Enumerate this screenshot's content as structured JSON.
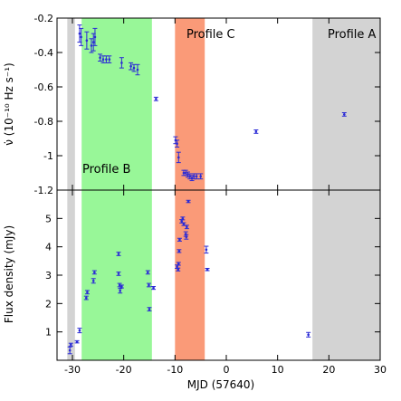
{
  "chart_data": [
    {
      "type": "scatter",
      "panel": "top",
      "xlabel": "MJD (57640)",
      "ylabel": "ν̇ (10⁻¹⁰ Hz s⁻¹)",
      "xlim": [
        -33,
        30
      ],
      "ylim": [
        -1.2,
        -0.2
      ],
      "yticks": [
        -0.2,
        -0.4,
        -0.6,
        -0.8,
        -1,
        -1.2
      ],
      "grid": false,
      "marker_color": "#2b2bd6",
      "series": [
        {
          "points": [
            {
              "x": -28.6,
              "y": -0.29,
              "err": 0.05
            },
            {
              "x": -28.3,
              "y": -0.31,
              "err": 0.05
            },
            {
              "x": -27.2,
              "y": -0.33,
              "err": 0.05
            },
            {
              "x": -26.3,
              "y": -0.36,
              "err": 0.04
            },
            {
              "x": -25.9,
              "y": -0.34,
              "err": 0.05
            },
            {
              "x": -25.6,
              "y": -0.31,
              "err": 0.05
            },
            {
              "x": -24.6,
              "y": -0.43,
              "err": 0.02
            },
            {
              "x": -24.0,
              "y": -0.44,
              "err": 0.02
            },
            {
              "x": -23.4,
              "y": -0.44,
              "err": 0.02
            },
            {
              "x": -22.8,
              "y": -0.44,
              "err": 0.02
            },
            {
              "x": -20.4,
              "y": -0.46,
              "err": 0.03
            },
            {
              "x": -18.6,
              "y": -0.48,
              "err": 0.02
            },
            {
              "x": -18.0,
              "y": -0.49,
              "err": 0.02
            },
            {
              "x": -17.3,
              "y": -0.5,
              "err": 0.03
            },
            {
              "x": -13.7,
              "y": -0.67,
              "err": 0.01
            },
            {
              "x": -9.9,
              "y": -0.91,
              "err": 0.02
            },
            {
              "x": -9.6,
              "y": -0.93,
              "err": 0.02
            },
            {
              "x": -9.3,
              "y": -1.01,
              "err": 0.03
            },
            {
              "x": -8.3,
              "y": -1.1,
              "err": 0.015
            },
            {
              "x": -7.9,
              "y": -1.1,
              "err": 0.015
            },
            {
              "x": -7.5,
              "y": -1.11,
              "err": 0.015
            },
            {
              "x": -7.1,
              "y": -1.12,
              "err": 0.015
            },
            {
              "x": -6.7,
              "y": -1.13,
              "err": 0.015
            },
            {
              "x": -6.3,
              "y": -1.12,
              "err": 0.015
            },
            {
              "x": -5.8,
              "y": -1.12,
              "err": 0.015
            },
            {
              "x": -5.0,
              "y": -1.12,
              "err": 0.015
            },
            {
              "x": 5.8,
              "y": -0.86,
              "err": 0.01
            },
            {
              "x": 23.0,
              "y": -0.76,
              "err": 0.01
            }
          ]
        }
      ]
    },
    {
      "type": "scatter",
      "panel": "bottom",
      "xlabel": "MJD (57640)",
      "ylabel": "Flux density (mJy)",
      "xlim": [
        -33,
        30
      ],
      "ylim": [
        0,
        6
      ],
      "xticks": [
        -30,
        -20,
        -10,
        0,
        10,
        20,
        30
      ],
      "yticks": [
        1,
        2,
        3,
        4,
        5
      ],
      "grid": false,
      "marker_color": "#2b2bd6",
      "series": [
        {
          "points": [
            {
              "x": -30.5,
              "y": 0.35,
              "err": 0.12
            },
            {
              "x": -30.3,
              "y": 0.55,
              "err": 0.05
            },
            {
              "x": -29.1,
              "y": 0.65,
              "err": 0.04
            },
            {
              "x": -28.6,
              "y": 1.05,
              "err": 0.08
            },
            {
              "x": -27.3,
              "y": 2.2,
              "err": 0.06
            },
            {
              "x": -27.1,
              "y": 2.4,
              "err": 0.06
            },
            {
              "x": -25.9,
              "y": 2.8,
              "err": 0.08
            },
            {
              "x": -25.7,
              "y": 3.1,
              "err": 0.06
            },
            {
              "x": -21.0,
              "y": 3.75,
              "err": 0.06
            },
            {
              "x": -21.0,
              "y": 3.05,
              "err": 0.06
            },
            {
              "x": -20.8,
              "y": 2.65,
              "err": 0.06
            },
            {
              "x": -20.7,
              "y": 2.45,
              "err": 0.08
            },
            {
              "x": -20.4,
              "y": 2.6,
              "err": 0.05
            },
            {
              "x": -15.3,
              "y": 3.1,
              "err": 0.06
            },
            {
              "x": -15.1,
              "y": 2.65,
              "err": 0.06
            },
            {
              "x": -15.0,
              "y": 1.8,
              "err": 0.06
            },
            {
              "x": -14.2,
              "y": 2.55,
              "err": 0.05
            },
            {
              "x": -9.6,
              "y": 3.3,
              "err": 0.06
            },
            {
              "x": -9.4,
              "y": 3.2,
              "err": 0.05
            },
            {
              "x": -9.3,
              "y": 3.4,
              "err": 0.05
            },
            {
              "x": -9.2,
              "y": 3.85,
              "err": 0.05
            },
            {
              "x": -9.1,
              "y": 4.25,
              "err": 0.05
            },
            {
              "x": -8.7,
              "y": 4.9,
              "err": 0.06
            },
            {
              "x": -8.5,
              "y": 5.0,
              "err": 0.05
            },
            {
              "x": -8.3,
              "y": 4.8,
              "err": 0.05
            },
            {
              "x": -7.9,
              "y": 4.45,
              "err": 0.08
            },
            {
              "x": -7.8,
              "y": 4.35,
              "err": 0.08
            },
            {
              "x": -7.7,
              "y": 4.7,
              "err": 0.06
            },
            {
              "x": -7.4,
              "y": 5.6,
              "err": 0.04
            },
            {
              "x": -3.9,
              "y": 3.9,
              "err": 0.12
            },
            {
              "x": -3.7,
              "y": 3.2,
              "err": 0.04
            },
            {
              "x": 16.0,
              "y": 0.9,
              "err": 0.08
            }
          ]
        }
      ]
    }
  ],
  "regions": [
    {
      "label": "",
      "from": -31.0,
      "to": -29.5,
      "color": "#d3d3d3"
    },
    {
      "label": "Profile B",
      "from": -28.2,
      "to": -14.5,
      "color": "#98f798"
    },
    {
      "label": "Profile C",
      "from": -10.0,
      "to": -4.2,
      "color": "#fa9a78"
    },
    {
      "label": "Profile A",
      "from": 16.8,
      "to": 30.0,
      "color": "#d3d3d3"
    }
  ],
  "profile_b": {
    "label": "Profile B"
  },
  "profile_c": {
    "label": "Profile C"
  },
  "profile_a": {
    "label": "Profile A"
  }
}
